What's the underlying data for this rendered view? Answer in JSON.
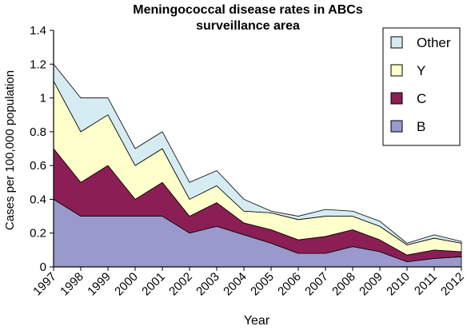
{
  "chart_data": {
    "type": "area",
    "stacked": true,
    "title": "Meningococcal disease rates in ABCs surveillance area",
    "title_lines": [
      "Meningococcal disease rates in ABCs",
      "surveillance area"
    ],
    "xlabel": "Year",
    "ylabel": "Cases per 100,000 population",
    "x": [
      1997,
      1998,
      1999,
      2000,
      2001,
      2002,
      2003,
      2004,
      2005,
      2006,
      2007,
      2008,
      2009,
      2010,
      2011,
      2012
    ],
    "x_tick_labels": [
      "1997",
      "1998",
      "1999",
      "2000",
      "2001",
      "2002",
      "2003",
      "2004",
      "2005",
      "2006",
      "2007",
      "2008",
      "2009",
      "2010",
      "2011",
      "2012"
    ],
    "ylim": [
      0,
      1.4
    ],
    "y_ticks": [
      0,
      0.2,
      0.4,
      0.6,
      0.8,
      1,
      1.2,
      1.4
    ],
    "y_tick_labels": [
      "0",
      "0.2",
      "0.4",
      "0.6",
      "0.8",
      "1",
      "1.2",
      "1.4"
    ],
    "grid": false,
    "legend_position": "top-right",
    "legend_order": [
      "Other",
      "Y",
      "C",
      "B"
    ],
    "series": [
      {
        "name": "B",
        "color": "#9999cc",
        "values": [
          0.4,
          0.3,
          0.3,
          0.3,
          0.3,
          0.2,
          0.24,
          0.19,
          0.14,
          0.08,
          0.08,
          0.12,
          0.09,
          0.03,
          0.05,
          0.06
        ]
      },
      {
        "name": "C",
        "color": "#8b1e54",
        "values": [
          0.3,
          0.2,
          0.3,
          0.1,
          0.2,
          0.1,
          0.14,
          0.07,
          0.08,
          0.08,
          0.1,
          0.1,
          0.07,
          0.04,
          0.05,
          0.03
        ]
      },
      {
        "name": "Y",
        "color": "#ffffcc",
        "values": [
          0.4,
          0.3,
          0.3,
          0.2,
          0.2,
          0.1,
          0.1,
          0.07,
          0.1,
          0.12,
          0.12,
          0.08,
          0.08,
          0.06,
          0.07,
          0.05
        ]
      },
      {
        "name": "Other",
        "color": "#d6ecf3",
        "values": [
          0.1,
          0.2,
          0.1,
          0.1,
          0.1,
          0.1,
          0.09,
          0.07,
          0.01,
          0.02,
          0.04,
          0.03,
          0.03,
          0.01,
          0.02,
          0.01
        ]
      }
    ]
  }
}
